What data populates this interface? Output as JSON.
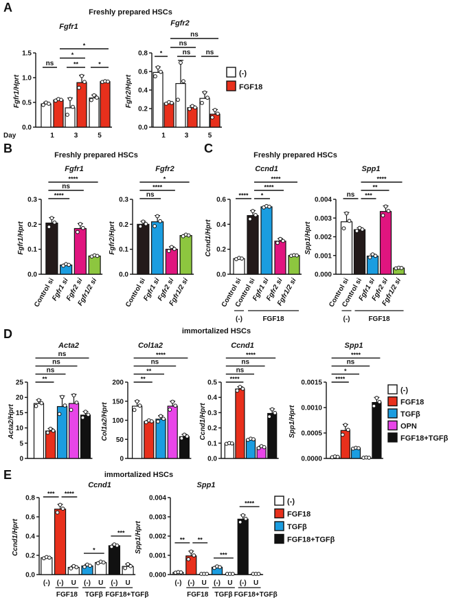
{
  "panels": [
    {
      "letter": "A",
      "title": "Freshly prepared HSCs"
    },
    {
      "letter": "B",
      "title": "Freshly prepared HSCs"
    },
    {
      "letter": "C",
      "title": "Freshly prepared HSCs"
    },
    {
      "letter": "D",
      "title": "immortalized HSCs"
    },
    {
      "letter": "E",
      "title": "immortalized HSCs"
    }
  ],
  "colors": {
    "none": "#ffffff",
    "fgf18": "#e8301c",
    "tgfb": "#1b9de0",
    "opn": "#e845e8",
    "combo": "#111111",
    "control_si": "#231a1a",
    "fgfr1_si": "#1b9de0",
    "fgfr2_si": "#e0157f",
    "fgfr12_si": "#8dc63f"
  },
  "legends": {
    "A": [
      "(-)",
      "FGF18"
    ],
    "D": [
      "(-)",
      "FGF18",
      "TGFβ",
      "OPN",
      "FGF18+TGFβ"
    ],
    "E": [
      "(-)",
      "FGF18",
      "TGFβ",
      "FGF18+TGFβ"
    ]
  },
  "legend_colors": {
    "A": [
      "#ffffff",
      "#e8301c"
    ],
    "D": [
      "#ffffff",
      "#e8301c",
      "#1b9de0",
      "#e845e8",
      "#111111"
    ],
    "E": [
      "#ffffff",
      "#e8301c",
      "#1b9de0",
      "#111111"
    ]
  },
  "chart_data": [
    {
      "id": "A1",
      "panel": "A",
      "type": "bar",
      "title": "Fgfr1",
      "ylabel": "Fgfr1/Hprt",
      "ylim": [
        0,
        1.5
      ],
      "yticks": [
        "0.0",
        "0.5",
        "1.0",
        "1.5"
      ],
      "xlabel": "Day",
      "categories": [
        "1",
        "3",
        "5"
      ],
      "series": [
        {
          "name": "(-)",
          "color": "#ffffff",
          "values": [
            0.47,
            0.39,
            0.59
          ],
          "sd": [
            0.03,
            0.2,
            0.06
          ]
        },
        {
          "name": "FGF18",
          "color": "#e8301c",
          "values": [
            0.55,
            0.9,
            0.92
          ],
          "sd": [
            0.02,
            0.15,
            0.01
          ]
        }
      ],
      "sig": [
        {
          "from": 0,
          "to": 1,
          "label": "ns"
        },
        {
          "from": 2,
          "to": 3,
          "label": "**"
        },
        {
          "from": 4,
          "to": 5,
          "label": "*"
        },
        {
          "from": 1,
          "to": 3,
          "label": "*"
        },
        {
          "from": 1,
          "to": 5,
          "label": "*"
        }
      ]
    },
    {
      "id": "A2",
      "panel": "A",
      "type": "bar",
      "title": "Fgfr2",
      "ylabel": "Fgfr2/Hprt",
      "ylim": [
        0,
        0.8
      ],
      "yticks": [
        "0.0",
        "0.2",
        "0.4",
        "0.6",
        "0.8"
      ],
      "categories": [
        "1",
        "3",
        "5"
      ],
      "series": [
        {
          "name": "(-)",
          "color": "#ffffff",
          "values": [
            0.59,
            0.47,
            0.31
          ],
          "sd": [
            0.06,
            0.25,
            0.07
          ]
        },
        {
          "name": "FGF18",
          "color": "#e8301c",
          "values": [
            0.26,
            0.21,
            0.14
          ],
          "sd": [
            0.01,
            0.02,
            0.05
          ]
        }
      ],
      "sig": [
        {
          "from": 0,
          "to": 1,
          "label": "*"
        },
        {
          "from": 2,
          "to": 3,
          "label": "ns"
        },
        {
          "from": 4,
          "to": 5,
          "label": "ns"
        },
        {
          "from": 1,
          "to": 3,
          "label": "ns"
        },
        {
          "from": 1,
          "to": 5,
          "label": "ns"
        }
      ]
    },
    {
      "id": "B1",
      "panel": "B",
      "type": "bar",
      "title": "Fgfr1",
      "ylabel": "Fgfr1/Hprt",
      "ylim": [
        0,
        0.3
      ],
      "yticks": [
        "0.0",
        "0.1",
        "0.2",
        "0.3"
      ],
      "categories": [
        "Control si",
        "Fgfr1 si",
        "Fgfr2 si",
        "Fgfr1/2 si"
      ],
      "values": [
        0.205,
        0.037,
        0.183,
        0.073
      ],
      "sd": [
        0.022,
        0.004,
        0.02,
        0.003
      ],
      "colors": [
        "#231a1a",
        "#1b9de0",
        "#e0157f",
        "#8dc63f"
      ],
      "sig": [
        {
          "from": 0,
          "to": 1,
          "label": "****"
        },
        {
          "from": 0,
          "to": 2,
          "label": "ns"
        },
        {
          "from": 0,
          "to": 3,
          "label": "****"
        }
      ]
    },
    {
      "id": "B2",
      "panel": "B",
      "type": "bar",
      "title": "Fgfr2",
      "ylabel": "Fgfr2/Hprt",
      "ylim": [
        0,
        0.3
      ],
      "yticks": [
        "0.0",
        "0.1",
        "0.2",
        "0.3"
      ],
      "categories": [
        "Control si",
        "Fgfr1 si",
        "Fgfr2 si",
        "Fgfr1/2 si"
      ],
      "values": [
        0.2,
        0.21,
        0.1,
        0.155
      ],
      "sd": [
        0.012,
        0.025,
        0.01,
        0.004
      ],
      "colors": [
        "#231a1a",
        "#1b9de0",
        "#e0157f",
        "#8dc63f"
      ],
      "sig": [
        {
          "from": 0,
          "to": 1,
          "label": "ns"
        },
        {
          "from": 0,
          "to": 2,
          "label": "****"
        },
        {
          "from": 0,
          "to": 3,
          "label": "*"
        }
      ]
    },
    {
      "id": "C1",
      "panel": "C",
      "type": "bar",
      "title": "Ccnd1",
      "ylabel": "Ccnd1/Hprt",
      "ylim": [
        0,
        0.6
      ],
      "yticks": [
        "0.0",
        "0.2",
        "0.4",
        "0.6"
      ],
      "categories": [
        "Control si",
        "Control si",
        "Fgfr1 si",
        "Fgfr2 si",
        "Fgfr1/2 si"
      ],
      "values": [
        0.125,
        0.47,
        0.54,
        0.265,
        0.15
      ],
      "sd": [
        0.006,
        0.04,
        0.007,
        0.02,
        0.003
      ],
      "colors": [
        "#ffffff",
        "#231a1a",
        "#1b9de0",
        "#e0157f",
        "#8dc63f"
      ],
      "groups": [
        {
          "label": "(-)",
          "from": 0,
          "to": 0
        },
        {
          "label": "FGF18",
          "from": 1,
          "to": 4
        }
      ],
      "sig": [
        {
          "from": 0,
          "to": 1,
          "label": "****"
        },
        {
          "from": 1,
          "to": 2,
          "label": "*"
        },
        {
          "from": 1,
          "to": 3,
          "label": "****"
        },
        {
          "from": 1,
          "to": 4,
          "label": "****"
        }
      ]
    },
    {
      "id": "C2",
      "panel": "C",
      "type": "bar",
      "title": "Spp1",
      "ylabel": "Spp1/Hprt",
      "ylim": [
        0,
        0.004
      ],
      "yticks": [
        "0.000",
        "0.001",
        "0.002",
        "0.003",
        "0.004"
      ],
      "categories": [
        "Control si",
        "Control si",
        "Fgfr1 si",
        "Fgfr2 si",
        "Fgfr1/2 si"
      ],
      "values": [
        0.0028,
        0.00238,
        0.00097,
        0.00335,
        0.00033
      ],
      "sd": [
        0.0005,
        0.0001,
        0.0001,
        0.0003,
        2e-05
      ],
      "colors": [
        "#ffffff",
        "#231a1a",
        "#1b9de0",
        "#e0157f",
        "#8dc63f"
      ],
      "groups": [
        {
          "label": "(-)",
          "from": 0,
          "to": 0
        },
        {
          "label": "FGF18",
          "from": 1,
          "to": 4
        }
      ],
      "sig": [
        {
          "from": 0,
          "to": 1,
          "label": "ns"
        },
        {
          "from": 1,
          "to": 2,
          "label": "***"
        },
        {
          "from": 1,
          "to": 3,
          "label": "**"
        },
        {
          "from": 1,
          "to": 4,
          "label": "****"
        }
      ]
    },
    {
      "id": "D1",
      "panel": "D",
      "type": "bar",
      "title": "Acta2",
      "ylabel": "Acta2/Hprt",
      "ylim": [
        0,
        25
      ],
      "yticks": [
        "0",
        "5",
        "10",
        "15",
        "20",
        "25"
      ],
      "values": [
        18,
        9,
        17,
        18,
        14.2
      ],
      "sd": [
        1.2,
        0.8,
        3.5,
        3,
        1.2
      ],
      "colors": [
        "#ffffff",
        "#e8301c",
        "#1b9de0",
        "#e845e8",
        "#111111"
      ],
      "sig": [
        {
          "from": 0,
          "to": 1,
          "label": "**"
        },
        {
          "from": 0,
          "to": 2,
          "label": "ns"
        },
        {
          "from": 0,
          "to": 3,
          "label": "ns"
        },
        {
          "from": 0,
          "to": 4,
          "label": "ns"
        }
      ]
    },
    {
      "id": "D2",
      "panel": "D",
      "type": "bar",
      "title": "Col1a2",
      "ylabel": "Col1a2/Hprt",
      "ylim": [
        0,
        200
      ],
      "yticks": [
        "0",
        "50",
        "100",
        "150",
        "200"
      ],
      "values": [
        137,
        97,
        103,
        137,
        57
      ],
      "sd": [
        14,
        3,
        9,
        13,
        6
      ],
      "colors": [
        "#ffffff",
        "#e8301c",
        "#1b9de0",
        "#e845e8",
        "#111111"
      ],
      "sig": [
        {
          "from": 0,
          "to": 1,
          "label": "**"
        },
        {
          "from": 0,
          "to": 2,
          "label": "**"
        },
        {
          "from": 0,
          "to": 3,
          "label": "ns"
        },
        {
          "from": 0,
          "to": 4,
          "label": "****"
        }
      ]
    },
    {
      "id": "D3",
      "panel": "D",
      "type": "bar",
      "title": "Ccnd1",
      "ylabel": "Ccnd1/Hprt",
      "ylim": [
        0,
        0.5
      ],
      "yticks": [
        "0.0",
        "0.1",
        "0.2",
        "0.3",
        "0.4",
        "0.5"
      ],
      "values": [
        0.098,
        0.455,
        0.125,
        0.073,
        0.295
      ],
      "sd": [
        0.003,
        0.015,
        0.005,
        0.008,
        0.03
      ],
      "colors": [
        "#ffffff",
        "#e8301c",
        "#1b9de0",
        "#e845e8",
        "#111111"
      ],
      "sig": [
        {
          "from": 0,
          "to": 1,
          "label": "****"
        },
        {
          "from": 0,
          "to": 2,
          "label": "ns"
        },
        {
          "from": 0,
          "to": 3,
          "label": "ns"
        },
        {
          "from": 0,
          "to": 4,
          "label": "****"
        }
      ]
    },
    {
      "id": "D4",
      "panel": "D",
      "type": "bar",
      "title": "Spp1",
      "ylabel": "Spp1/Hprt",
      "ylim": [
        0,
        0.0015
      ],
      "yticks": [
        "0.0000",
        "0.0005",
        "0.0010",
        "0.0015"
      ],
      "values": [
        3e-05,
        0.00055,
        0.0002,
        1e-05,
        0.0011
      ],
      "sd": [
        1e-05,
        0.00012,
        1e-05,
        1e-05,
        0.0001
      ],
      "colors": [
        "#ffffff",
        "#e8301c",
        "#1b9de0",
        "#e845e8",
        "#111111"
      ],
      "sig": [
        {
          "from": 0,
          "to": 1,
          "label": "****"
        },
        {
          "from": 0,
          "to": 2,
          "label": "*"
        },
        {
          "from": 0,
          "to": 3,
          "label": "ns"
        },
        {
          "from": 0,
          "to": 4,
          "label": "****"
        }
      ]
    },
    {
      "id": "E1",
      "panel": "E",
      "type": "bar",
      "title": "Ccnd1",
      "ylabel": "Ccnd1/Hprt",
      "ylim": [
        0,
        0.8
      ],
      "yticks": [
        "0.0",
        "0.2",
        "0.4",
        "0.6",
        "0.8"
      ],
      "categories": [
        "(-)",
        "(-)",
        "U",
        "(-)",
        "U",
        "(-)",
        "U"
      ],
      "values": [
        0.175,
        0.68,
        0.075,
        0.09,
        0.125,
        0.3,
        0.085
      ],
      "sd": [
        0.008,
        0.05,
        0.015,
        0.015,
        0.01,
        0.015,
        0.025
      ],
      "colors": [
        "#ffffff",
        "#e8301c",
        "#ffffff",
        "#1b9de0",
        "#ffffff",
        "#111111",
        "#ffffff"
      ],
      "groups": [
        {
          "label": "FGF18",
          "from": 1,
          "to": 2
        },
        {
          "label": "TGFβ",
          "from": 3,
          "to": 4
        },
        {
          "label": "FGF18+TGFβ",
          "from": 5,
          "to": 6
        }
      ],
      "sig": [
        {
          "from": 0,
          "to": 1,
          "label": "***"
        },
        {
          "from": 1,
          "to": 2,
          "label": "****"
        },
        {
          "from": 3,
          "to": 4,
          "label": "*"
        },
        {
          "from": 5,
          "to": 6,
          "label": "***"
        }
      ]
    },
    {
      "id": "E2",
      "panel": "E",
      "type": "bar",
      "title": "Spp1",
      "ylabel": "Spp1/Hprt",
      "ylim": [
        0,
        0.004
      ],
      "yticks": [
        "0.000",
        "0.001",
        "0.002",
        "0.003",
        "0.004"
      ],
      "categories": [
        "(-)",
        "(-)",
        "U",
        "(-)",
        "U",
        "(-)",
        "U"
      ],
      "values": [
        0.00011,
        0.00097,
        1e-05,
        0.00038,
        1e-05,
        0.00288,
        1e-05
      ],
      "sd": [
        2e-05,
        0.00025,
        2e-05,
        5e-05,
        2e-05,
        0.00022,
        2e-05
      ],
      "colors": [
        "#ffffff",
        "#e8301c",
        "#ffffff",
        "#1b9de0",
        "#ffffff",
        "#111111",
        "#ffffff"
      ],
      "groups": [
        {
          "label": "FGF18",
          "from": 1,
          "to": 2
        },
        {
          "label": "TGFβ",
          "from": 3,
          "to": 4
        },
        {
          "label": "FGF18+TGFβ",
          "from": 5,
          "to": 6
        }
      ],
      "sig": [
        {
          "from": 0,
          "to": 1,
          "label": "**"
        },
        {
          "from": 1,
          "to": 2,
          "label": "**"
        },
        {
          "from": 3,
          "to": 4,
          "label": "***"
        },
        {
          "from": 5,
          "to": 6,
          "label": "****"
        }
      ]
    }
  ]
}
